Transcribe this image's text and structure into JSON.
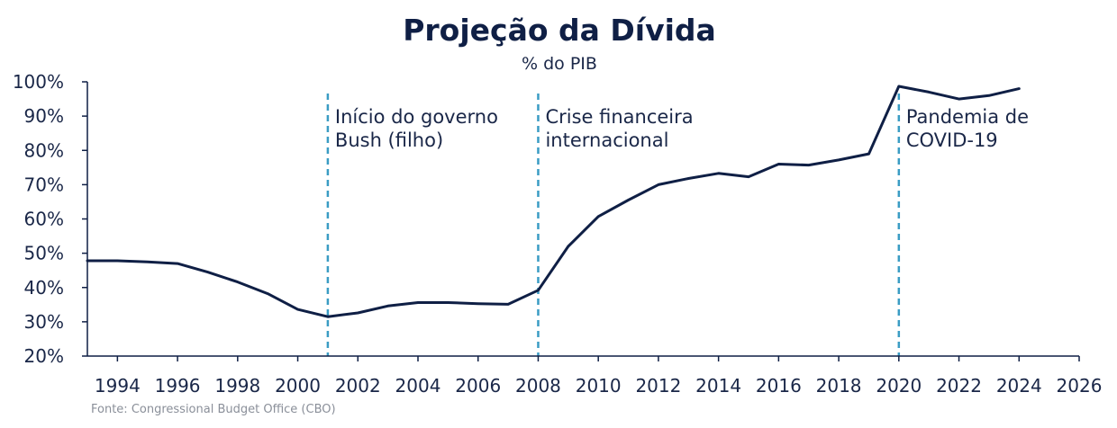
{
  "colors": {
    "line": "#0f1f45",
    "marker_line": "#3a9cc4",
    "axis": "#0f1f45",
    "text": "#1a2748",
    "source_text": "#8a8f99"
  },
  "chart_data": {
    "type": "line",
    "title": "Projeção da Dívida",
    "subtitle": "% do PIB",
    "xlabel": "",
    "ylabel": "",
    "xlim": [
      1993,
      2026
    ],
    "ylim": [
      20,
      100
    ],
    "x_ticks": [
      1994,
      1996,
      1998,
      2000,
      2002,
      2004,
      2006,
      2008,
      2010,
      2012,
      2014,
      2016,
      2018,
      2020,
      2022,
      2024,
      2026
    ],
    "x_tick_labels": [
      "1994",
      "1996",
      "1998",
      "2000",
      "2002",
      "2004",
      "2006",
      "2008",
      "2010",
      "2012",
      "2014",
      "2016",
      "2018",
      "2020",
      "2022",
      "2024",
      "2026"
    ],
    "y_ticks": [
      20,
      30,
      40,
      50,
      60,
      70,
      80,
      90,
      100
    ],
    "y_tick_labels": [
      "20%",
      "30%",
      "40%",
      "50%",
      "60%",
      "70%",
      "80%",
      "90%",
      "100%"
    ],
    "grid": false,
    "legend": "none",
    "series": [
      {
        "x": [
          1993,
          1994,
          1995,
          1996,
          1997,
          1998,
          1999,
          2000,
          2001,
          2002,
          2003,
          2004,
          2005,
          2006,
          2007,
          2008,
          2009,
          2010,
          2011,
          2012,
          2013,
          2014,
          2015,
          2016,
          2017,
          2018,
          2019,
          2020,
          2021,
          2022,
          2023,
          2024
        ],
        "values": [
          47.8,
          47.8,
          47.5,
          47.0,
          44.5,
          41.6,
          38.2,
          33.6,
          31.5,
          32.6,
          34.6,
          35.6,
          35.6,
          35.3,
          35.1,
          39.2,
          52.0,
          60.7,
          65.5,
          70.0,
          71.8,
          73.3,
          72.3,
          76.0,
          75.7,
          77.2,
          79.0,
          98.7,
          97.0,
          95.0,
          96.0,
          98.0
        ]
      }
    ],
    "annotations": [
      {
        "x": 2001,
        "label_lines": [
          "Início do governo",
          "Bush (filho)"
        ]
      },
      {
        "x": 2008,
        "label_lines": [
          "Crise financeira",
          "internacional"
        ]
      },
      {
        "x": 2020,
        "label_lines": [
          "Pandemia de",
          "COVID-19"
        ]
      }
    ],
    "source": "Fonte: Congressional Budget Office (CBO)"
  }
}
